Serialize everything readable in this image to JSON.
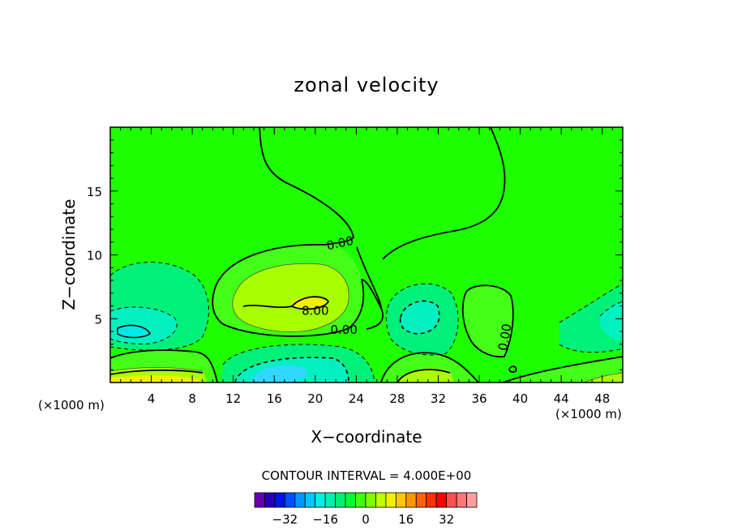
{
  "chart_data": {
    "type": "contour",
    "title": "zonal velocity",
    "xlabel": "X−coordinate",
    "ylabel": "Z−coordinate",
    "x_unit_left": "(×1000 m)",
    "x_unit_right": "(×1000 m)",
    "xlim": [
      0,
      50
    ],
    "ylim": [
      0,
      20
    ],
    "x_ticks": [
      4,
      8,
      12,
      16,
      20,
      24,
      28,
      32,
      36,
      40,
      44,
      48
    ],
    "y_ticks": [
      5,
      10,
      15
    ],
    "contour_interval_text": "CONTOUR INTERVAL = 4.000E+00",
    "contour_labels": [
      {
        "text": "0.00",
        "x": 22.5,
        "y": 10.6
      },
      {
        "text": "8.00",
        "x": 20.0,
        "y": 5.3
      },
      {
        "text": "0.00",
        "x": 22.8,
        "y": 3.8
      },
      {
        "text": "0.00",
        "x": 38.9,
        "y": 3.5
      }
    ],
    "colorbar": {
      "ticks": [
        -32,
        -16,
        0,
        16,
        32
      ],
      "colors": [
        "#6a00b0",
        "#2400b8",
        "#0018d8",
        "#0050ff",
        "#0098ff",
        "#00c8ff",
        "#00f0e8",
        "#00f0b0",
        "#00f070",
        "#00ff30",
        "#40ff10",
        "#80ff00",
        "#c0ff00",
        "#f0f000",
        "#ffc800",
        "#ff9600",
        "#ff6400",
        "#ff3200",
        "#ff0000",
        "#ff5050",
        "#ff7878",
        "#ffa0a0"
      ]
    },
    "grid": false,
    "legend": "colorbar-bottom"
  }
}
